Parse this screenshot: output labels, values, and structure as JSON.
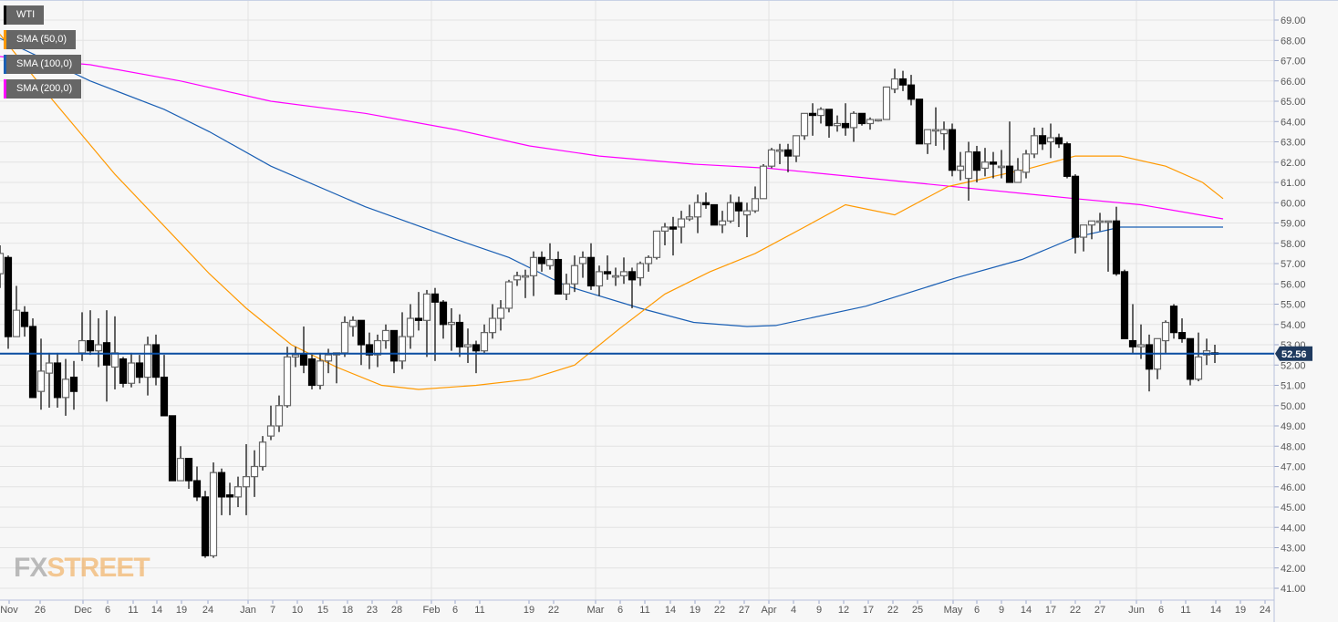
{
  "chart_data": {
    "type": "candlestick",
    "instrument": "WTI",
    "ylim": [
      41,
      69
    ],
    "y_ticks": [
      "41.00",
      "42.00",
      "43.00",
      "44.00",
      "45.00",
      "46.00",
      "47.00",
      "48.00",
      "49.00",
      "50.00",
      "51.00",
      "52.00",
      "53.00",
      "54.00",
      "55.00",
      "56.00",
      "57.00",
      "58.00",
      "59.00",
      "60.00",
      "61.00",
      "62.00",
      "63.00",
      "64.00",
      "65.00",
      "66.00",
      "67.00",
      "68.00",
      "69.00"
    ],
    "x_ticks": [
      "Nov",
      "26",
      "Dec",
      "6",
      "11",
      "14",
      "19",
      "24",
      "Jan",
      "7",
      "10",
      "15",
      "18",
      "23",
      "28",
      "Feb",
      "6",
      "11",
      "19",
      "22",
      "Mar",
      "6",
      "11",
      "14",
      "19",
      "22",
      "27",
      "Apr",
      "4",
      "9",
      "12",
      "17",
      "22",
      "25",
      "May",
      "6",
      "9",
      "14",
      "17",
      "22",
      "27",
      "Jun",
      "6",
      "11",
      "14",
      "19",
      "24"
    ],
    "current_price": {
      "label": "52.56",
      "value": 52.56,
      "color": "#0b4ea2"
    },
    "legend": [
      {
        "label": "WTI",
        "color": "#000000"
      },
      {
        "label": "SMA (50,0)",
        "color": "#ff9900"
      },
      {
        "label": "SMA (100,0)",
        "color": "#1a5fb4"
      },
      {
        "label": "SMA (200,0)",
        "color": "#ff00ff"
      }
    ],
    "candles_ohlc": [
      [
        56.5,
        57.9,
        55.8,
        57.5
      ],
      [
        57.3,
        57.4,
        52.8,
        53.4
      ],
      [
        53.4,
        55.9,
        53.4,
        54.7
      ],
      [
        54.6,
        54.9,
        53.4,
        53.9
      ],
      [
        53.9,
        54.3,
        50.4,
        50.4
      ],
      [
        50.7,
        53.3,
        49.8,
        51.7
      ],
      [
        51.6,
        52.6,
        49.9,
        52.1
      ],
      [
        52.1,
        52.6,
        49.9,
        50.4
      ],
      [
        50.4,
        52.3,
        49.5,
        51.3
      ],
      [
        51.4,
        52.2,
        49.8,
        50.7
      ],
      [
        52.6,
        54.6,
        52.2,
        53.2
      ],
      [
        53.2,
        54.7,
        52.5,
        52.7
      ],
      [
        52.7,
        54.3,
        51.9,
        53.0
      ],
      [
        53.1,
        54.7,
        50.2,
        52.0
      ],
      [
        51.9,
        54.4,
        50.8,
        52.6
      ],
      [
        52.3,
        52.4,
        50.9,
        51.1
      ],
      [
        51.1,
        52.6,
        50.9,
        52.1
      ],
      [
        52.1,
        52.5,
        51.1,
        51.4
      ],
      [
        51.4,
        53.4,
        50.5,
        53.0
      ],
      [
        53.0,
        53.5,
        51.0,
        51.4
      ],
      [
        51.4,
        52.5,
        49.5,
        49.5
      ],
      [
        49.5,
        49.5,
        46.3,
        46.3
      ],
      [
        46.3,
        48.0,
        46.3,
        47.4
      ],
      [
        47.4,
        47.4,
        45.9,
        46.3
      ],
      [
        46.3,
        47.0,
        45.3,
        45.5
      ],
      [
        45.5,
        45.8,
        42.5,
        42.6
      ],
      [
        42.6,
        47.2,
        42.5,
        46.7
      ],
      [
        46.7,
        46.9,
        44.6,
        45.5
      ],
      [
        45.6,
        46.2,
        44.6,
        45.5
      ],
      [
        45.5,
        46.5,
        45.0,
        46.0
      ],
      [
        46.0,
        48.1,
        44.6,
        46.5
      ],
      [
        46.5,
        47.8,
        45.5,
        47.0
      ],
      [
        47.0,
        48.5,
        46.8,
        48.2
      ],
      [
        48.5,
        50.0,
        48.3,
        49.0
      ],
      [
        49.0,
        50.5,
        48.7,
        50.0
      ],
      [
        50.0,
        52.9,
        49.9,
        52.4
      ],
      [
        52.4,
        52.9,
        51.9,
        52.5
      ],
      [
        52.5,
        53.9,
        51.6,
        52.0
      ],
      [
        52.3,
        52.5,
        50.8,
        51.0
      ],
      [
        51.0,
        52.6,
        50.8,
        52.2
      ],
      [
        52.2,
        52.8,
        51.6,
        52.5
      ],
      [
        52.5,
        52.6,
        51.1,
        52.6
      ],
      [
        52.6,
        54.4,
        52.4,
        54.1
      ],
      [
        53.9,
        54.4,
        53.4,
        54.2
      ],
      [
        54.2,
        54.2,
        52.0,
        53.0
      ],
      [
        53.0,
        53.6,
        51.8,
        52.5
      ],
      [
        52.5,
        53.5,
        51.9,
        53.2
      ],
      [
        53.2,
        54.0,
        52.8,
        53.7
      ],
      [
        53.7,
        53.7,
        51.6,
        52.2
      ],
      [
        52.2,
        54.6,
        51.8,
        53.4
      ],
      [
        53.4,
        55.0,
        52.8,
        54.3
      ],
      [
        54.3,
        55.6,
        53.7,
        54.2
      ],
      [
        54.2,
        55.7,
        52.4,
        55.5
      ],
      [
        55.5,
        55.8,
        52.2,
        55.1
      ],
      [
        55.1,
        55.2,
        53.3,
        54.0
      ],
      [
        54.0,
        54.8,
        52.7,
        54.1
      ],
      [
        54.1,
        54.5,
        52.4,
        52.9
      ],
      [
        52.9,
        53.8,
        52.1,
        53.0
      ],
      [
        53.0,
        53.2,
        51.6,
        52.7
      ],
      [
        52.7,
        54.0,
        52.6,
        53.6
      ],
      [
        53.6,
        55.0,
        53.3,
        54.3
      ],
      [
        54.3,
        55.2,
        53.7,
        54.8
      ],
      [
        54.8,
        56.2,
        54.6,
        56.1
      ],
      [
        56.2,
        56.6,
        55.9,
        56.4
      ],
      [
        56.4,
        56.7,
        55.3,
        56.4
      ],
      [
        56.4,
        57.6,
        55.4,
        57.3
      ],
      [
        57.3,
        57.6,
        56.6,
        57.0
      ],
      [
        56.9,
        58.0,
        56.7,
        57.2
      ],
      [
        57.2,
        57.6,
        55.5,
        55.5
      ],
      [
        55.5,
        56.5,
        55.2,
        56.0
      ],
      [
        56.0,
        57.4,
        55.6,
        56.9
      ],
      [
        57.0,
        57.6,
        56.3,
        57.3
      ],
      [
        57.3,
        58.0,
        55.7,
        55.9
      ],
      [
        55.9,
        56.9,
        55.4,
        56.6
      ],
      [
        56.6,
        57.4,
        56.2,
        56.5
      ],
      [
        56.4,
        56.8,
        55.9,
        56.4
      ],
      [
        56.4,
        57.3,
        56.0,
        56.6
      ],
      [
        56.6,
        56.8,
        54.8,
        56.2
      ],
      [
        56.3,
        57.1,
        55.9,
        57.0
      ],
      [
        57.0,
        57.4,
        56.6,
        57.3
      ],
      [
        57.3,
        58.6,
        57.2,
        58.6
      ],
      [
        58.6,
        59.0,
        57.9,
        58.8
      ],
      [
        58.8,
        59.3,
        57.4,
        58.7
      ],
      [
        58.8,
        59.6,
        58.0,
        59.2
      ],
      [
        59.2,
        59.9,
        59.1,
        59.3
      ],
      [
        59.3,
        60.4,
        58.5,
        60.0
      ],
      [
        60.0,
        60.5,
        59.7,
        59.9
      ],
      [
        59.9,
        59.9,
        58.9,
        58.9
      ],
      [
        58.9,
        59.6,
        58.5,
        59.1
      ],
      [
        59.1,
        60.4,
        59.0,
        60.0
      ],
      [
        60.0,
        60.3,
        58.8,
        59.6
      ],
      [
        59.4,
        60.0,
        58.3,
        59.6
      ],
      [
        59.6,
        60.8,
        59.5,
        60.2
      ],
      [
        60.2,
        61.9,
        60.2,
        61.8
      ],
      [
        61.8,
        62.7,
        61.7,
        62.6
      ],
      [
        62.6,
        62.9,
        61.9,
        62.6
      ],
      [
        62.6,
        62.9,
        61.5,
        62.3
      ],
      [
        62.3,
        63.3,
        62.0,
        63.3
      ],
      [
        63.3,
        64.3,
        63.1,
        64.4
      ],
      [
        64.4,
        64.9,
        63.3,
        64.3
      ],
      [
        64.3,
        64.7,
        63.9,
        64.6
      ],
      [
        64.6,
        64.6,
        63.2,
        63.8
      ],
      [
        63.8,
        64.3,
        63.5,
        63.9
      ],
      [
        63.9,
        64.9,
        63.3,
        63.7
      ],
      [
        63.7,
        64.5,
        63.0,
        64.4
      ],
      [
        64.4,
        64.4,
        63.8,
        63.9
      ],
      [
        63.9,
        64.2,
        63.6,
        64.1
      ],
      [
        64.1,
        64.1,
        64.0,
        64.1
      ],
      [
        64.1,
        65.7,
        64.1,
        65.7
      ],
      [
        65.6,
        66.6,
        65.4,
        66.1
      ],
      [
        66.1,
        66.5,
        65.5,
        65.8
      ],
      [
        65.8,
        66.3,
        64.8,
        65.1
      ],
      [
        65.1,
        65.1,
        62.9,
        62.9
      ],
      [
        62.9,
        63.6,
        62.4,
        63.6
      ],
      [
        63.6,
        64.7,
        62.8,
        63.6
      ],
      [
        63.4,
        64.0,
        62.6,
        63.6
      ],
      [
        63.6,
        63.9,
        61.3,
        61.6
      ],
      [
        61.6,
        62.5,
        61.1,
        61.8
      ],
      [
        61.2,
        63.0,
        60.1,
        62.5
      ],
      [
        62.5,
        62.8,
        61.0,
        61.6
      ],
      [
        61.7,
        62.7,
        61.3,
        62.0
      ],
      [
        62.0,
        62.5,
        61.2,
        61.9
      ],
      [
        61.8,
        62.6,
        61.2,
        61.8
      ],
      [
        61.8,
        64.0,
        61.1,
        61.0
      ],
      [
        61.0,
        62.2,
        61.0,
        61.6
      ],
      [
        61.5,
        62.6,
        61.2,
        62.4
      ],
      [
        62.4,
        63.7,
        62.2,
        63.3
      ],
      [
        63.3,
        63.7,
        62.6,
        62.9
      ],
      [
        63.0,
        63.9,
        62.2,
        63.2
      ],
      [
        63.2,
        63.4,
        62.7,
        62.9
      ],
      [
        62.9,
        63.0,
        61.2,
        61.3
      ],
      [
        61.3,
        61.4,
        57.5,
        58.3
      ],
      [
        58.3,
        58.9,
        57.6,
        58.9
      ],
      [
        58.9,
        59.0,
        58.2,
        59.1
      ],
      [
        59.1,
        59.5,
        58.6,
        59.1
      ],
      [
        59.1,
        59.1,
        56.6,
        59.1
      ],
      [
        59.1,
        59.8,
        56.4,
        56.5
      ],
      [
        56.6,
        56.7,
        53.3,
        53.3
      ],
      [
        53.2,
        55.0,
        52.6,
        52.9
      ],
      [
        52.9,
        54.0,
        52.3,
        53.0
      ],
      [
        53.0,
        53.5,
        50.7,
        51.8
      ],
      [
        51.8,
        53.1,
        51.3,
        53.3
      ],
      [
        53.2,
        54.2,
        52.6,
        54.1
      ],
      [
        54.9,
        55.0,
        53.3,
        53.6
      ],
      [
        53.6,
        54.3,
        53.1,
        53.3
      ],
      [
        53.3,
        53.3,
        51.0,
        51.3
      ],
      [
        51.3,
        53.6,
        51.2,
        52.4
      ],
      [
        52.5,
        53.3,
        52.0,
        52.7
      ],
      [
        52.6,
        53.0,
        52.1,
        52.56
      ]
    ],
    "sma_50": [
      [
        0,
        68.3
      ],
      [
        5.5,
        65.5
      ],
      [
        14,
        61.4
      ],
      [
        22,
        58.0
      ],
      [
        25.5,
        56.5
      ],
      [
        30,
        54.8
      ],
      [
        35.5,
        53.0
      ],
      [
        41,
        51.9
      ],
      [
        46.5,
        51.0
      ],
      [
        51,
        50.8
      ],
      [
        58,
        51.0
      ],
      [
        64.5,
        51.3
      ],
      [
        70,
        52.0
      ],
      [
        75.5,
        53.8
      ],
      [
        81,
        55.5
      ],
      [
        86.5,
        56.6
      ],
      [
        92,
        57.5
      ],
      [
        98,
        58.8
      ],
      [
        103,
        59.9
      ],
      [
        109,
        59.4
      ],
      [
        115.5,
        60.8
      ],
      [
        125.5,
        61.7
      ],
      [
        131,
        62.3
      ],
      [
        136.5,
        62.3
      ],
      [
        142,
        61.8
      ],
      [
        146.5,
        61.0
      ],
      [
        149,
        60.2
      ]
    ],
    "sma_100": [
      [
        0,
        68.1
      ],
      [
        11,
        66.0
      ],
      [
        20,
        64.6
      ],
      [
        25.5,
        63.5
      ],
      [
        33,
        61.8
      ],
      [
        44.5,
        59.8
      ],
      [
        55.5,
        58.2
      ],
      [
        62,
        57.3
      ],
      [
        69,
        55.9
      ],
      [
        78,
        54.8
      ],
      [
        84.5,
        54.1
      ],
      [
        91,
        53.9
      ],
      [
        94.5,
        53.95
      ],
      [
        105.5,
        54.9
      ],
      [
        116.5,
        56.3
      ],
      [
        124.5,
        57.2
      ],
      [
        131,
        58.3
      ],
      [
        136.5,
        58.8
      ],
      [
        149,
        58.8
      ]
    ],
    "sma_200": [
      [
        0,
        67.2
      ],
      [
        11,
        66.8
      ],
      [
        22,
        66.0
      ],
      [
        33,
        65.0
      ],
      [
        44.5,
        64.4
      ],
      [
        55.5,
        63.6
      ],
      [
        64.5,
        62.8
      ],
      [
        73,
        62.3
      ],
      [
        84.5,
        61.9
      ],
      [
        93.5,
        61.7
      ],
      [
        111,
        61.0
      ],
      [
        131,
        60.2
      ],
      [
        139,
        59.9
      ],
      [
        149,
        59.2
      ]
    ],
    "grid": true
  },
  "branding": {
    "logo_fx": "FX",
    "logo_street": "STREET"
  }
}
